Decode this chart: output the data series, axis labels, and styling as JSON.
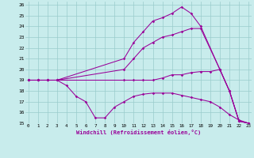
{
  "bg_color": "#c8ecec",
  "line_color": "#990099",
  "xlim": [
    -0.3,
    23.3
  ],
  "ylim": [
    15,
    26.3
  ],
  "yticks": [
    15,
    16,
    17,
    18,
    19,
    20,
    21,
    22,
    23,
    24,
    25,
    26
  ],
  "xticks": [
    0,
    1,
    2,
    3,
    4,
    5,
    6,
    7,
    8,
    9,
    10,
    11,
    12,
    13,
    14,
    15,
    16,
    17,
    18,
    19,
    20,
    21,
    22,
    23
  ],
  "xlabel": "Windchill (Refroidissement éolien,°C)",
  "lines": [
    {
      "x": [
        0,
        1,
        2,
        3,
        10,
        11,
        12,
        13,
        14,
        15,
        16,
        17,
        18,
        20,
        21,
        22,
        23
      ],
      "y": [
        19,
        19,
        19,
        19,
        21,
        22.5,
        23.5,
        24.5,
        24.8,
        25.2,
        25.8,
        25.2,
        24.0,
        20,
        18,
        15.2,
        15
      ]
    },
    {
      "x": [
        0,
        1,
        2,
        3,
        10,
        11,
        12,
        13,
        14,
        15,
        16,
        17,
        18,
        20,
        21,
        22,
        23
      ],
      "y": [
        19,
        19,
        19,
        19,
        20,
        21,
        22,
        22.5,
        23,
        23.2,
        23.5,
        23.8,
        23.8,
        20,
        18,
        15.2,
        15
      ]
    },
    {
      "x": [
        0,
        1,
        2,
        3,
        10,
        11,
        12,
        13,
        14,
        15,
        16,
        17,
        18,
        19,
        20,
        21,
        22,
        23
      ],
      "y": [
        19,
        19,
        19,
        19,
        19,
        19,
        19,
        19,
        19.2,
        19.5,
        19.5,
        19.7,
        19.8,
        19.8,
        20,
        18,
        15.2,
        15
      ]
    },
    {
      "x": [
        0,
        1,
        2,
        3,
        4,
        5,
        6,
        7,
        8,
        9,
        10,
        11,
        12,
        13,
        14,
        15,
        16,
        17,
        18,
        19,
        20,
        21,
        22,
        23
      ],
      "y": [
        19,
        19,
        19,
        19,
        18.5,
        17.5,
        17,
        15.5,
        15.5,
        16.5,
        17,
        17.5,
        17.7,
        17.8,
        17.8,
        17.8,
        17.6,
        17.4,
        17.2,
        17.0,
        16.5,
        15.8,
        15.3,
        15
      ]
    }
  ]
}
